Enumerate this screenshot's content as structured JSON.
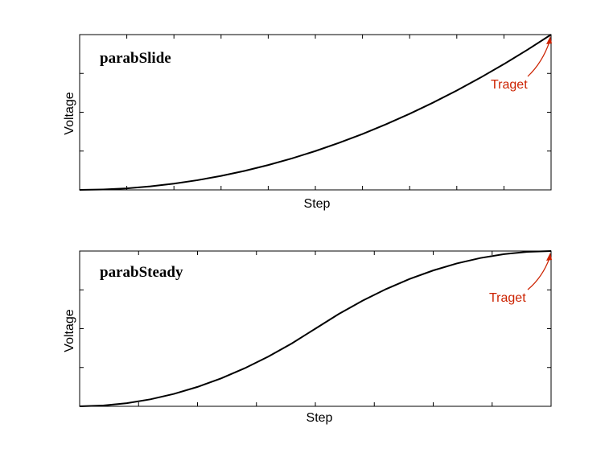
{
  "chart_data": [
    {
      "type": "line",
      "title": "parabSlide",
      "xlabel": "Step",
      "ylabel": "Voltage",
      "xlim": [
        0,
        1
      ],
      "ylim": [
        0,
        1
      ],
      "x_ticks": 10,
      "y_ticks": 4,
      "grid": false,
      "annotation": {
        "text": "Traget",
        "color": "#cc2200",
        "target": [
          1,
          1
        ]
      },
      "series": [
        {
          "x": [
            0,
            0.05,
            0.1,
            0.15,
            0.2,
            0.25,
            0.3,
            0.35,
            0.4,
            0.45,
            0.5,
            0.55,
            0.6,
            0.65,
            0.7,
            0.75,
            0.8,
            0.85,
            0.9,
            0.95,
            1
          ],
          "values": [
            0,
            0.0025,
            0.01,
            0.0225,
            0.04,
            0.0625,
            0.09,
            0.1225,
            0.16,
            0.2025,
            0.25,
            0.3025,
            0.36,
            0.4225,
            0.49,
            0.5625,
            0.64,
            0.7225,
            0.81,
            0.9025,
            1
          ]
        }
      ]
    },
    {
      "type": "line",
      "title": "parabSteady",
      "xlabel": "Step",
      "ylabel": "Voltage",
      "xlim": [
        0,
        1
      ],
      "ylim": [
        0,
        1
      ],
      "x_ticks": 8,
      "y_ticks": 4,
      "grid": false,
      "annotation": {
        "text": "Traget",
        "color": "#cc2200",
        "target": [
          1,
          1
        ]
      },
      "series": [
        {
          "x": [
            0,
            0.05,
            0.1,
            0.15,
            0.2,
            0.25,
            0.3,
            0.35,
            0.4,
            0.45,
            0.5,
            0.55,
            0.6,
            0.65,
            0.7,
            0.75,
            0.8,
            0.85,
            0.9,
            0.95,
            1
          ],
          "values": [
            0,
            0.005,
            0.02,
            0.045,
            0.08,
            0.125,
            0.18,
            0.245,
            0.32,
            0.405,
            0.5,
            0.595,
            0.68,
            0.755,
            0.82,
            0.875,
            0.92,
            0.955,
            0.98,
            0.995,
            1
          ]
        }
      ]
    }
  ]
}
